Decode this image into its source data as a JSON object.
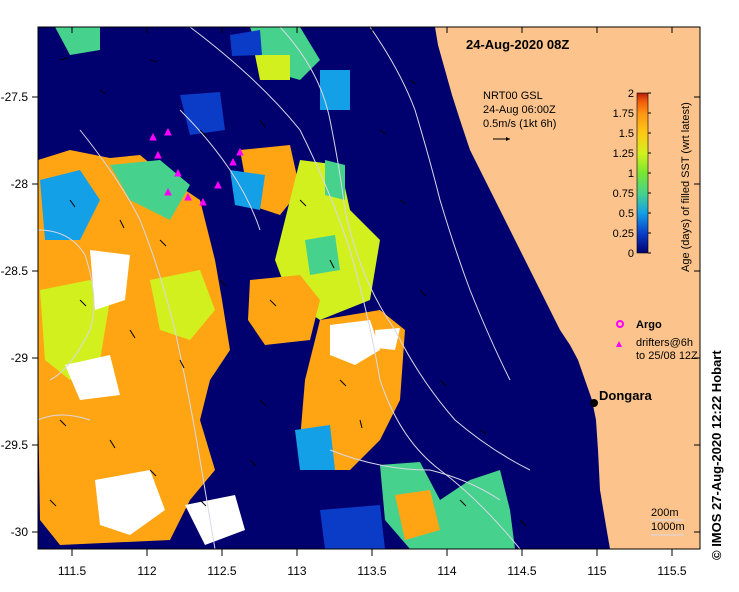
{
  "map": {
    "title": "24-Aug-2020 08Z",
    "current_label": {
      "line1": "NRT00 GSL",
      "line2": "24-Aug 06:00Z",
      "line3": "0.5m/s (1kt 6h)"
    },
    "place_name": "Dongara",
    "legend": {
      "argo_label": "Argo",
      "drifters_line1": "drifters@6h",
      "drifters_line2": "to 25/08 12Z",
      "argo_color": "#ff00ff",
      "drifter_color": "#ff00ff"
    },
    "contours": {
      "line1": "200m",
      "line2": "1000m"
    },
    "credit": "©  IMOS 27-Aug-2020 12:22 Hobart",
    "x_ticks": [
      "111.5",
      "112",
      "112.5",
      "113",
      "113.5",
      "114",
      "114.5",
      "115",
      "115.5"
    ],
    "y_ticks": [
      "-27.5",
      "-28",
      "-28.5",
      "-29",
      "-29.5",
      "-30"
    ],
    "colors": {
      "ocean_background": "#00006e",
      "land": "#fcc48c",
      "no_data": "#ffffff"
    }
  },
  "colorbar": {
    "label": "Age (days) of filled SST (wrt latest)",
    "ticks": [
      "2",
      "1.75",
      "1.5",
      "1.25",
      "1",
      "0.75",
      "0.5",
      "0.25",
      "0"
    ],
    "range": [
      0,
      2
    ],
    "colors": [
      "#00006e",
      "#0a3cc8",
      "#14a0e6",
      "#46d28c",
      "#78e632",
      "#d2f01e",
      "#ffc814",
      "#ff9614",
      "#f05a0a",
      "#b41e0a"
    ]
  }
}
